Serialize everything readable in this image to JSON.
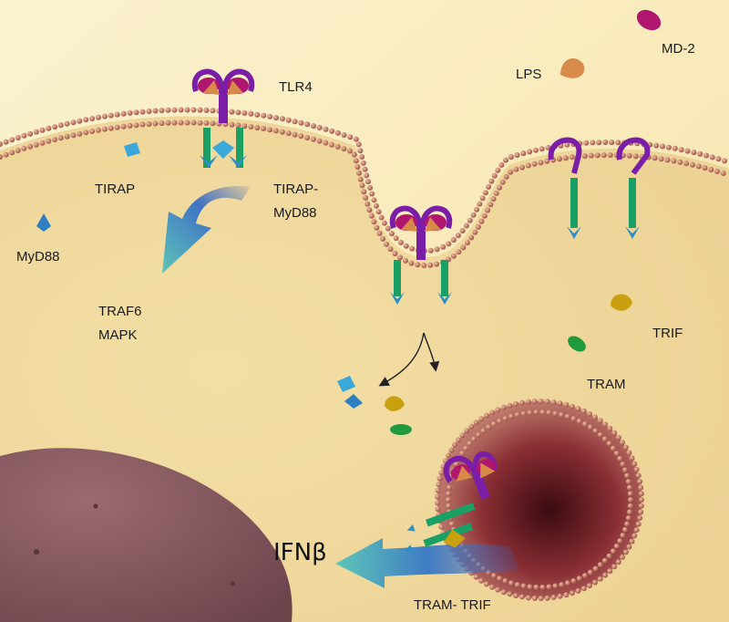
{
  "labels": {
    "md2": "MD-2",
    "lps": "LPS",
    "tlr4": "TLR4",
    "tirap": "TIRAP",
    "tirap_myd88_line1": "TIRAP-",
    "tirap_myd88_line2": "MyD88",
    "myd88": "MyD88",
    "traf6": "TRAF6",
    "mapk": "MAPK",
    "trif": "TRIF",
    "tram": "TRAM",
    "ifnb": "IFNβ",
    "tram_trif": "TRAM- TRIF"
  },
  "colors": {
    "extracellular": "#fbf3d2",
    "cytoplasm": "#f1dca6",
    "membrane_bead": "#b8695a",
    "nucleus": "#8a5a62",
    "receptor_purple": "#7a1ea8",
    "md2_magenta": "#b0166e",
    "lps_orange": "#d88a4a",
    "tir_green": "#1aa065",
    "adaptor_blue": "#2e8fc2",
    "trif_yellow": "#c8a010",
    "tram_green": "#1f9a3c",
    "arrow_teal": "#5ec6b8",
    "arrow_blue": "#3a5fb8"
  }
}
